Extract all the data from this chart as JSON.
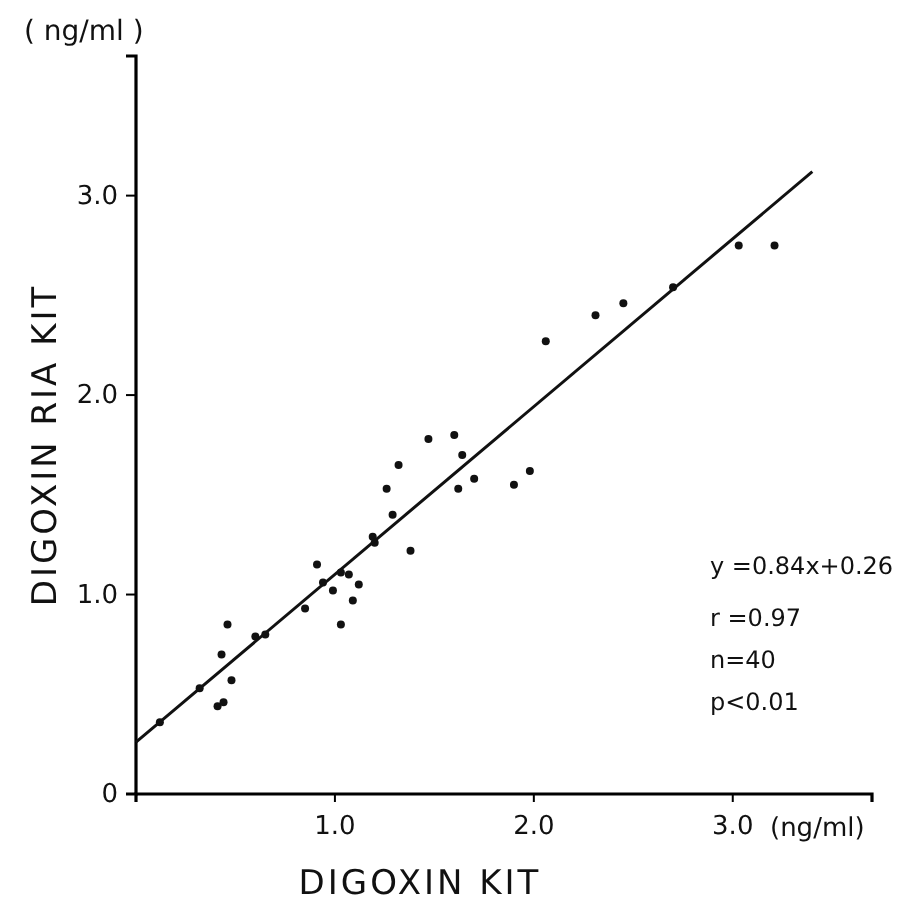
{
  "chart_data": {
    "type": "scatter",
    "xlabel": "DIGOXIN KIT",
    "ylabel": "DIGOXIN RIA KIT",
    "annotations": [
      "( ng/ml )",
      "(ng/ml)",
      "y =0.84x+0.26",
      "r =0.97",
      "n=40",
      "p<0.01"
    ],
    "xlim": [
      0,
      3.7
    ],
    "ylim": [
      0,
      3.7
    ],
    "xticks": [
      {
        "value": 0,
        "label": null
      },
      {
        "value": 1,
        "label": "1.0"
      },
      {
        "value": 2,
        "label": "2.0"
      },
      {
        "value": 3,
        "label": "3.0"
      }
    ],
    "yticks": [
      {
        "value": 0,
        "label": "0"
      },
      {
        "value": 1,
        "label": "1.0"
      },
      {
        "value": 2,
        "label": "2.0"
      },
      {
        "value": 3,
        "label": "3.0"
      }
    ],
    "grid": false,
    "series": [
      {
        "marker": "circle",
        "color": "#111111",
        "x": [
          0.12,
          0.32,
          0.46,
          0.43,
          0.48,
          0.41,
          0.44,
          0.6,
          0.65,
          0.85,
          1.03,
          1.09,
          0.91,
          0.94,
          0.99,
          1.03,
          1.07,
          1.12,
          1.19,
          1.2,
          1.38,
          1.29,
          1.26,
          1.32,
          1.47,
          1.6,
          1.64,
          1.62,
          1.7,
          1.9,
          1.98,
          2.06,
          2.31,
          2.45,
          2.7,
          3.03,
          3.21
        ],
        "values": [
          0.36,
          0.53,
          0.85,
          0.7,
          0.57,
          0.44,
          0.46,
          0.79,
          0.8,
          0.93,
          0.85,
          0.97,
          1.15,
          1.06,
          1.02,
          1.11,
          1.1,
          1.05,
          1.29,
          1.26,
          1.22,
          1.4,
          1.53,
          1.65,
          1.78,
          1.8,
          1.7,
          1.53,
          1.58,
          1.55,
          1.62,
          2.27,
          2.4,
          2.46,
          2.54,
          2.75,
          2.75
        ]
      },
      {
        "type": "line",
        "color": "#111111",
        "x": [
          0,
          3.4
        ],
        "values": [
          0.26,
          3.12
        ]
      }
    ]
  }
}
